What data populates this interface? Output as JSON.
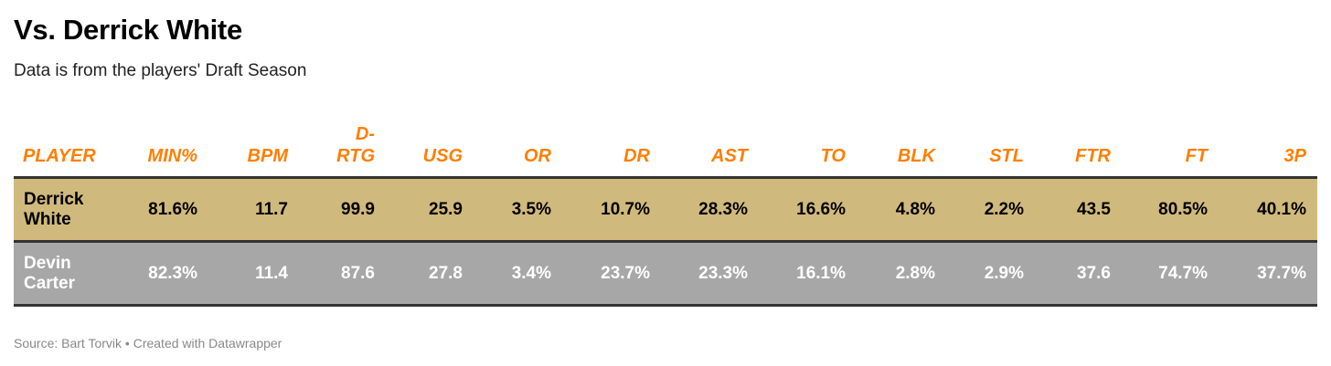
{
  "title": "Vs. Derrick White",
  "subtitle": "Data is from the players' Draft Season",
  "footer": {
    "source": "Source: Bart Torvik",
    "separator": "•",
    "credit": "Created with Datawrapper"
  },
  "colors": {
    "header_text": "#ff7e00",
    "row1_background": "#d0b97d",
    "row2_background": "#a7a7a7",
    "row1_text": "#000000",
    "row2_text": "#ffffff"
  },
  "chart_data": {
    "type": "table",
    "title": "Vs. Derrick White",
    "subtitle": "Data is from the players' Draft Season",
    "columns": [
      "PLAYER",
      "MIN%",
      "BPM",
      "D-RTG",
      "USG",
      "OR",
      "DR",
      "AST",
      "TO",
      "BLK",
      "STL",
      "FTR",
      "FT",
      "3P"
    ],
    "header_lines": [
      [
        "PLAYER"
      ],
      [
        "MIN%"
      ],
      [
        "BPM"
      ],
      [
        "D-",
        "RTG"
      ],
      [
        "USG"
      ],
      [
        "OR"
      ],
      [
        "DR"
      ],
      [
        "AST"
      ],
      [
        "TO"
      ],
      [
        "BLK"
      ],
      [
        "STL"
      ],
      [
        "FTR"
      ],
      [
        "FT"
      ],
      [
        "3P"
      ]
    ],
    "rows": [
      {
        "player_lines": [
          "Derrick",
          "White"
        ],
        "values": [
          "81.6%",
          "11.7",
          "99.9",
          "25.9",
          "3.5%",
          "10.7%",
          "28.3%",
          "16.6%",
          "4.8%",
          "2.2%",
          "43.5",
          "80.5%",
          "40.1%"
        ]
      },
      {
        "player_lines": [
          "Devin",
          "Carter"
        ],
        "values": [
          "82.3%",
          "11.4",
          "87.6",
          "27.8",
          "3.4%",
          "23.7%",
          "23.3%",
          "16.1%",
          "2.8%",
          "2.9%",
          "37.6",
          "74.7%",
          "37.7%"
        ]
      }
    ]
  }
}
